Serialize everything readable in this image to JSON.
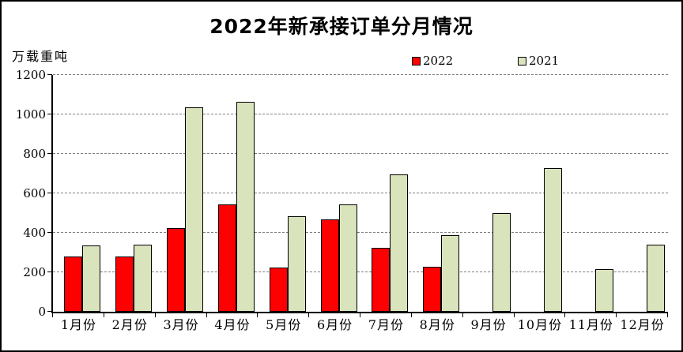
{
  "chart_data": {
    "type": "bar",
    "title": "2022年新承接订单分月情况",
    "ylabel": "万载重吨",
    "xlabel": "",
    "categories": [
      "1月份",
      "2月份",
      "3月份",
      "4月份",
      "5月份",
      "6月份",
      "7月份",
      "8月份",
      "9月份",
      "10月份",
      "11月份",
      "12月份"
    ],
    "series": [
      {
        "name": "2022",
        "color": "#ff0000",
        "values": [
          280,
          280,
          425,
          545,
          225,
          470,
          325,
          230,
          null,
          null,
          null,
          null
        ]
      },
      {
        "name": "2021",
        "color": "#d9e3bc",
        "values": [
          335,
          340,
          1035,
          1065,
          485,
          545,
          695,
          390,
          500,
          730,
          215,
          340
        ]
      }
    ],
    "ylim": [
      0,
      1200
    ],
    "yticks": [
      0,
      200,
      400,
      600,
      800,
      1000,
      1200
    ],
    "grid": true,
    "gridline_style": "dashed",
    "legend_position": "top-center"
  },
  "colors": {
    "background": "#ffffff",
    "outer_border": "#000000",
    "axis": "#000000",
    "gridline": "#808080",
    "bar_border": "#000000",
    "series_2022": "#ff0000",
    "series_2021": "#d9e3bc"
  }
}
